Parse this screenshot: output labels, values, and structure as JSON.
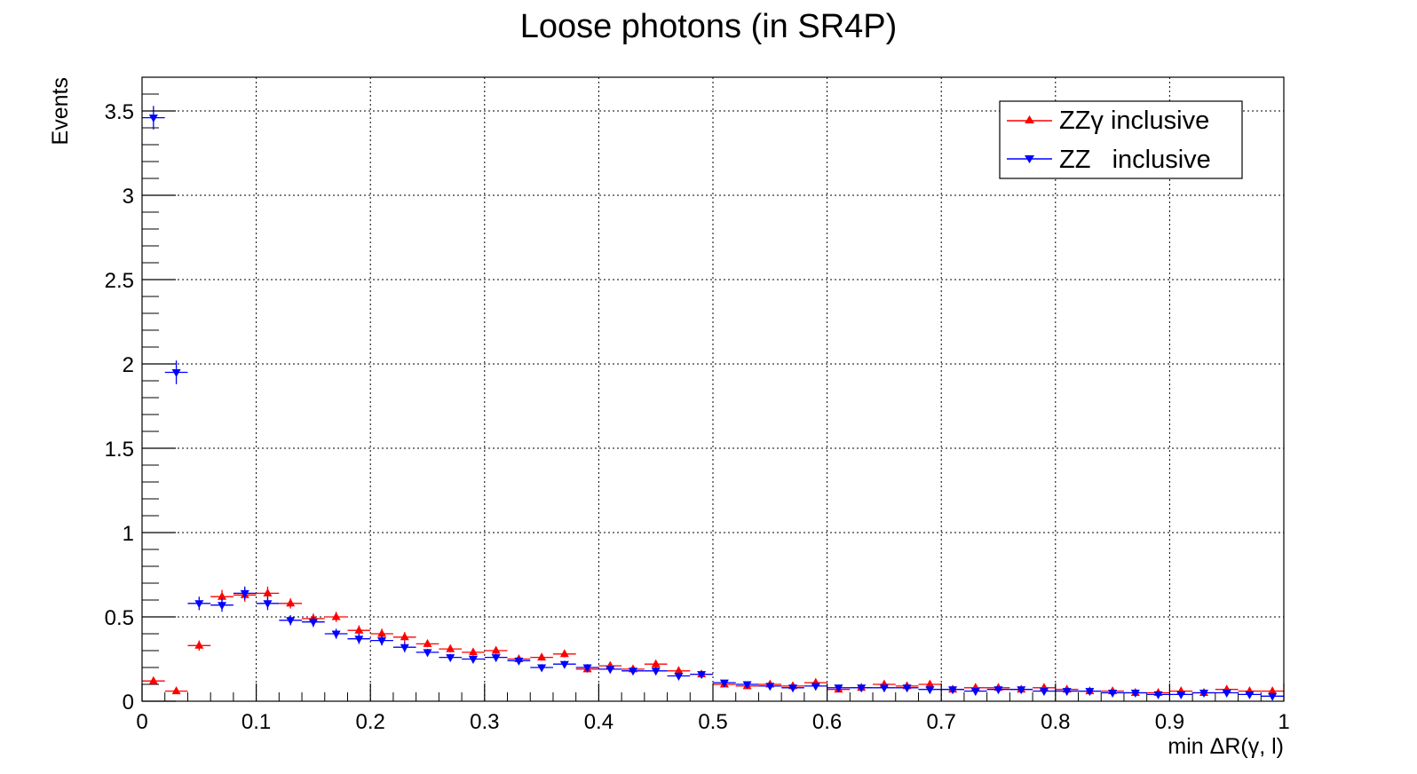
{
  "chart_data": {
    "type": "scatter",
    "title": "Loose photons (in SR4P)",
    "xlabel": "min ΔR(γ, l)",
    "ylabel": "Events",
    "xlim": [
      0,
      1
    ],
    "ylim": [
      0,
      3.7
    ],
    "grid": true,
    "legend_position": "top-right",
    "x_ticks": [
      "0",
      "0.1",
      "0.2",
      "0.3",
      "0.4",
      "0.5",
      "0.6",
      "0.7",
      "0.8",
      "0.9",
      "1"
    ],
    "y_ticks": [
      "0",
      "0.5",
      "1",
      "1.5",
      "2",
      "2.5",
      "3",
      "3.5"
    ],
    "bin_width": 0.02,
    "x": [
      0.01,
      0.03,
      0.05,
      0.07,
      0.09,
      0.11,
      0.13,
      0.15,
      0.17,
      0.19,
      0.21,
      0.23,
      0.25,
      0.27,
      0.29,
      0.31,
      0.33,
      0.35,
      0.37,
      0.39,
      0.41,
      0.43,
      0.45,
      0.47,
      0.49,
      0.51,
      0.53,
      0.55,
      0.57,
      0.59,
      0.61,
      0.63,
      0.65,
      0.67,
      0.69,
      0.71,
      0.73,
      0.75,
      0.77,
      0.79,
      0.81,
      0.83,
      0.85,
      0.87,
      0.89,
      0.91,
      0.93,
      0.95,
      0.97,
      0.99
    ],
    "series": [
      {
        "name": "ZZγ inclusive",
        "color": "#ff0000",
        "marker": "triangle-up",
        "values": [
          0.12,
          0.06,
          0.33,
          0.62,
          0.63,
          0.64,
          0.58,
          0.49,
          0.5,
          0.42,
          0.4,
          0.38,
          0.34,
          0.31,
          0.29,
          0.3,
          0.25,
          0.26,
          0.28,
          0.19,
          0.21,
          0.19,
          0.22,
          0.18,
          0.16,
          0.1,
          0.09,
          0.1,
          0.09,
          0.11,
          0.07,
          0.08,
          0.1,
          0.09,
          0.1,
          0.07,
          0.08,
          0.08,
          0.07,
          0.08,
          0.07,
          0.06,
          0.06,
          0.05,
          0.05,
          0.06,
          0.05,
          0.07,
          0.06,
          0.06
        ],
        "errors": [
          0.02,
          0.01,
          0.03,
          0.04,
          0.04,
          0.04,
          0.03,
          0.03,
          0.03,
          0.03,
          0.03,
          0.03,
          0.02,
          0.02,
          0.02,
          0.02,
          0.02,
          0.02,
          0.02,
          0.02,
          0.02,
          0.02,
          0.02,
          0.02,
          0.02,
          0.01,
          0.01,
          0.01,
          0.01,
          0.01,
          0.01,
          0.01,
          0.01,
          0.01,
          0.01,
          0.01,
          0.01,
          0.01,
          0.01,
          0.01,
          0.01,
          0.01,
          0.01,
          0.01,
          0.01,
          0.01,
          0.01,
          0.01,
          0.01,
          0.01
        ]
      },
      {
        "name": "ZZ   inclusive",
        "color": "#0000ff",
        "marker": "triangle-down",
        "values": [
          3.46,
          1.95,
          0.58,
          0.57,
          0.64,
          0.58,
          0.48,
          0.47,
          0.4,
          0.37,
          0.36,
          0.32,
          0.29,
          0.26,
          0.25,
          0.26,
          0.24,
          0.2,
          0.22,
          0.2,
          0.19,
          0.18,
          0.18,
          0.15,
          0.16,
          0.11,
          0.1,
          0.09,
          0.08,
          0.09,
          0.08,
          0.08,
          0.08,
          0.08,
          0.07,
          0.07,
          0.06,
          0.07,
          0.07,
          0.06,
          0.06,
          0.06,
          0.05,
          0.05,
          0.04,
          0.04,
          0.05,
          0.05,
          0.04,
          0.03
        ],
        "errors": [
          0.07,
          0.07,
          0.04,
          0.04,
          0.04,
          0.04,
          0.03,
          0.03,
          0.03,
          0.03,
          0.03,
          0.03,
          0.02,
          0.02,
          0.02,
          0.02,
          0.02,
          0.02,
          0.02,
          0.02,
          0.02,
          0.02,
          0.02,
          0.02,
          0.02,
          0.01,
          0.01,
          0.01,
          0.01,
          0.01,
          0.01,
          0.01,
          0.01,
          0.01,
          0.01,
          0.01,
          0.01,
          0.01,
          0.01,
          0.01,
          0.01,
          0.01,
          0.01,
          0.01,
          0.01,
          0.01,
          0.01,
          0.01,
          0.01,
          0.01
        ]
      }
    ]
  }
}
